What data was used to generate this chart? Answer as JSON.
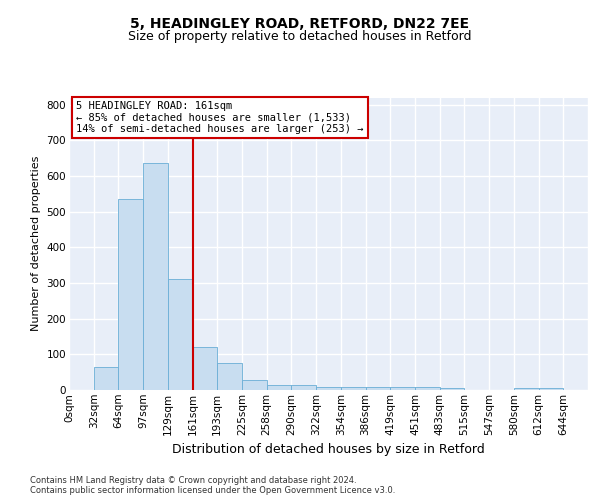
{
  "title1": "5, HEADINGLEY ROAD, RETFORD, DN22 7EE",
  "title2": "Size of property relative to detached houses in Retford",
  "xlabel": "Distribution of detached houses by size in Retford",
  "ylabel": "Number of detached properties",
  "footnote": "Contains HM Land Registry data © Crown copyright and database right 2024.\nContains public sector information licensed under the Open Government Licence v3.0.",
  "bin_labels": [
    "0sqm",
    "32sqm",
    "64sqm",
    "97sqm",
    "129sqm",
    "161sqm",
    "193sqm",
    "225sqm",
    "258sqm",
    "290sqm",
    "322sqm",
    "354sqm",
    "386sqm",
    "419sqm",
    "451sqm",
    "483sqm",
    "515sqm",
    "547sqm",
    "580sqm",
    "612sqm",
    "644sqm"
  ],
  "bar_values": [
    0,
    65,
    535,
    635,
    310,
    120,
    75,
    28,
    14,
    14,
    9,
    9,
    9,
    9,
    8,
    5,
    0,
    0,
    5,
    5,
    0
  ],
  "bar_color": "#c8ddf0",
  "bar_edge_color": "#6aaed6",
  "highlight_bin": 5,
  "highlight_line_color": "#cc0000",
  "annotation_text": "5 HEADINGLEY ROAD: 161sqm\n← 85% of detached houses are smaller (1,533)\n14% of semi-detached houses are larger (253) →",
  "annotation_box_color": "#cc0000",
  "ylim": [
    0,
    820
  ],
  "yticks": [
    0,
    100,
    200,
    300,
    400,
    500,
    600,
    700,
    800
  ],
  "bg_color": "#e8eef8",
  "grid_color": "#ffffff",
  "title1_fontsize": 10,
  "title2_fontsize": 9,
  "ylabel_fontsize": 8,
  "xlabel_fontsize": 9,
  "tick_fontsize": 7.5,
  "footnote_fontsize": 6
}
